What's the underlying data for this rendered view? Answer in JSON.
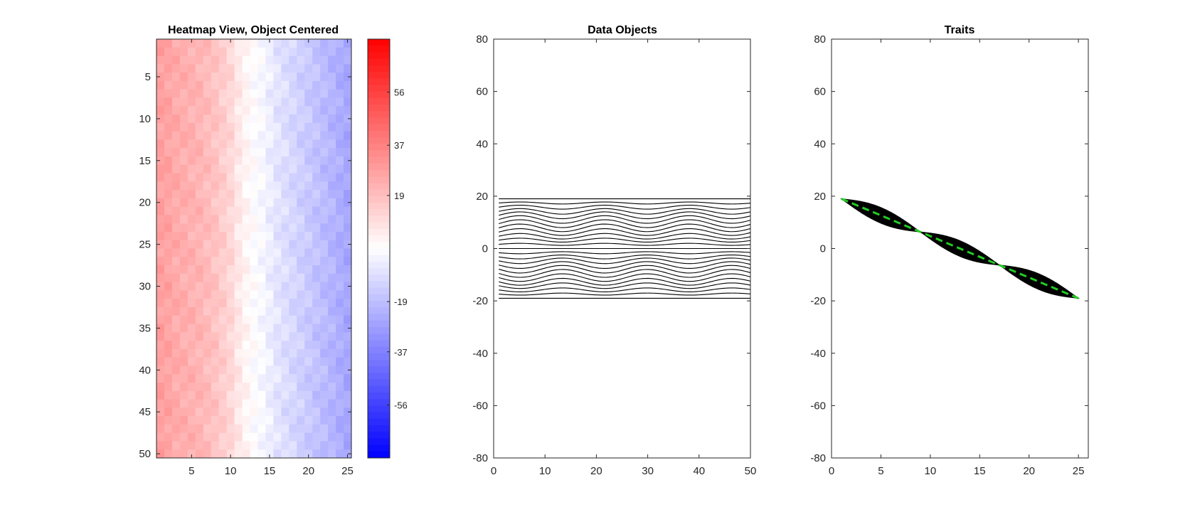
{
  "chart_data": [
    {
      "type": "heatmap",
      "title": "Heatmap View, Object Centered",
      "rows": 50,
      "cols": 25,
      "x_ticks": [
        5,
        10,
        15,
        20,
        25
      ],
      "y_ticks": [
        5,
        10,
        15,
        20,
        25,
        30,
        35,
        40,
        45,
        50
      ],
      "color_range": [
        -75,
        75
      ],
      "colormap": [
        "#0000ff",
        "#ffffff",
        "#ff0000"
      ],
      "column_base_values": [
        28,
        27,
        25,
        24,
        23,
        22,
        20,
        18,
        15,
        12,
        7,
        3,
        0,
        -2,
        -5,
        -8,
        -10,
        -12,
        -14,
        -16,
        -18,
        -20,
        -22,
        -24,
        -26
      ],
      "colorbar": {
        "ticks": [
          56,
          37,
          19,
          -19,
          -37,
          -56
        ],
        "ticklabels": [
          "56",
          "37",
          "19",
          "-19",
          "-37",
          "-56"
        ]
      }
    },
    {
      "type": "line",
      "title": "Data Objects",
      "xlim": [
        0,
        50
      ],
      "ylim": [
        -80,
        80
      ],
      "x_ticks": [
        0,
        10,
        20,
        30,
        40,
        50
      ],
      "y_ticks": [
        80,
        60,
        40,
        20,
        0,
        -20,
        -40,
        -60,
        -80
      ],
      "x_range": [
        1,
        50
      ],
      "n_series": 25,
      "series_end_values": [
        19,
        17.4,
        15.8,
        14.2,
        12.7,
        11.1,
        9.5,
        7.9,
        6.3,
        4.7,
        3.2,
        1.6,
        0,
        -1.6,
        -3.2,
        -4.7,
        -6.3,
        -7.9,
        -9.5,
        -11.1,
        -12.7,
        -14.2,
        -15.8,
        -17.4,
        -19
      ],
      "wave_amplitude": 1.5,
      "wave_period": 16.5,
      "color": "#000000"
    },
    {
      "type": "line",
      "title": "Traits",
      "xlim": [
        0,
        26
      ],
      "ylim": [
        -80,
        80
      ],
      "x_ticks": [
        0,
        5,
        10,
        15,
        20,
        25
      ],
      "y_ticks": [
        80,
        60,
        40,
        20,
        0,
        -20,
        -40,
        -60,
        -80
      ],
      "x": [
        1,
        25
      ],
      "mean_line": [
        19,
        -19
      ],
      "band_half_width": 3,
      "band_period": 8,
      "band_color": "#000000",
      "mean_color": "#22cc22"
    }
  ]
}
